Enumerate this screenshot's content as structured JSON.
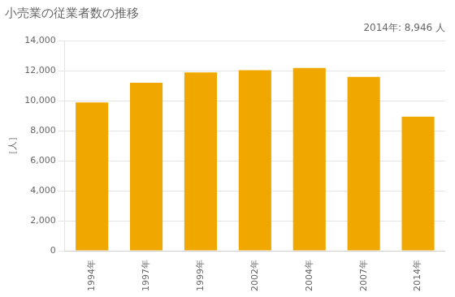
{
  "chart_data": {
    "type": "bar",
    "title": "小売業の従業者数の推移",
    "ylabel": "［人］",
    "annotation": "2014年: 8,946 人",
    "categories": [
      "1994年",
      "1997年",
      "1999年",
      "2002年",
      "2004年",
      "2007年",
      "2014年"
    ],
    "values": [
      9900,
      11200,
      11900,
      12050,
      12200,
      11600,
      8946
    ],
    "color": "#F0A800",
    "ylim": [
      0,
      14000
    ],
    "yticks": [
      0,
      {
        "value": 2000,
        "label": "2,000"
      },
      {
        "value": 4000,
        "label": "4,000"
      },
      {
        "value": 6000,
        "label": "6,000"
      },
      {
        "value": 8000,
        "label": "8,000"
      },
      {
        "value": 10000,
        "label": "10,000"
      },
      {
        "value": 12000,
        "label": "12,000"
      },
      {
        "value": 14000,
        "label": "14,000"
      }
    ],
    "grid": true
  }
}
